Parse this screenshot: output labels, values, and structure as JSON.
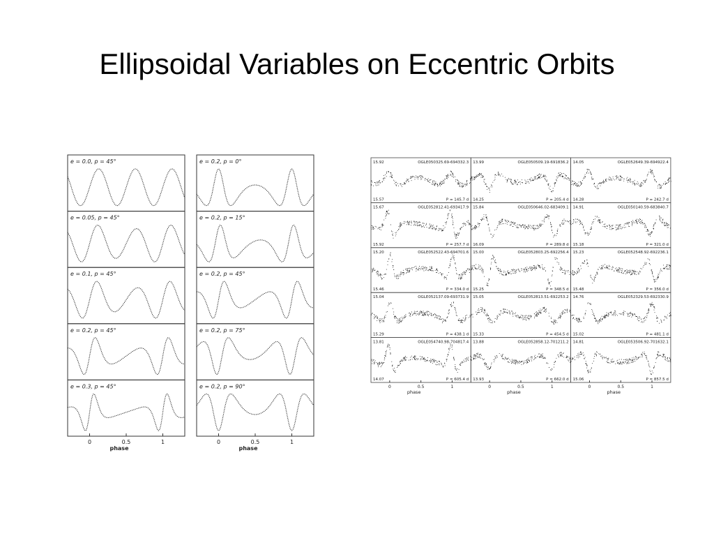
{
  "title": "Ellipsoidal Variables on Eccentric Orbits",
  "left_figure": {
    "panels": [
      "e = 0.0,  p = 45°",
      "e = 0.05,  p = 45°",
      "e = 0.1,  p = 45°",
      "e = 0.2,  p = 45°",
      "e = 0.3,  p = 45°",
      "e = 0.2,  p = 0°",
      "e = 0.2,  p = 15°",
      "e = 0.2,  p = 45°",
      "e = 0.2,  p = 75°",
      "e = 0.2,  p = 90°"
    ],
    "xticks": [
      "0",
      "0.5",
      "1"
    ],
    "xlabel": "phase"
  },
  "right_figure": {
    "panels": [
      {
        "top": "15.92",
        "name": "OGLE050325.69-694332.3",
        "bottom": "15.57",
        "period": "P = 145.7 d"
      },
      {
        "top": "13.99",
        "name": "OGLE050509.19-691836.2",
        "bottom": "14.25",
        "period": "P = 205.4 d"
      },
      {
        "top": "14.05",
        "name": "OGLE052649.39-694922.4",
        "bottom": "14.28",
        "period": "P = 242.7 d"
      },
      {
        "top": "15.67",
        "name": "OGLE052812.41-693417.9",
        "bottom": "15.92",
        "period": "P = 257.7 d"
      },
      {
        "top": "15.84",
        "name": "OGLE050646.02-683409.1",
        "bottom": "16.09",
        "period": "P = 289.8 d"
      },
      {
        "top": "14.91",
        "name": "OGLE050140.59-683840.7",
        "bottom": "15.18",
        "period": "P = 321.0 d"
      },
      {
        "top": "15.20",
        "name": "OGLE052522.43-694701.6",
        "bottom": "15.46",
        "period": "P = 334.0 d"
      },
      {
        "top": "15.00",
        "name": "OGLE052803.25-692256.4",
        "bottom": "15.25",
        "period": "P = 348.5 d"
      },
      {
        "top": "15.23",
        "name": "OGLE052548.92-692236.1",
        "bottom": "15.48",
        "period": "P = 356.0 d"
      },
      {
        "top": "15.04",
        "name": "OGLE052137.09-693731.9",
        "bottom": "15.29",
        "period": "P = 438.1 d"
      },
      {
        "top": "15.05",
        "name": "OGLE052813.51-692253.2",
        "bottom": "15.33",
        "period": "P = 454.5 d"
      },
      {
        "top": "14.76",
        "name": "OGLE052329.53-692330.9",
        "bottom": "15.02",
        "period": "P = 481.1 d"
      },
      {
        "top": "13.81",
        "name": "OGLE054740.98-704817.4",
        "bottom": "14.07",
        "period": "P = 605.4 d"
      },
      {
        "top": "13.88",
        "name": "OGLE052858.12-701211.2",
        "bottom": "13.93",
        "period": "P = 662.0 d"
      },
      {
        "top": "14.81",
        "name": "OGLE053506.92-701632.1",
        "bottom": "15.06",
        "period": "P = 857.5 d"
      }
    ],
    "xticks": [
      "0",
      "0.5",
      "1"
    ],
    "xlabel": "phase"
  }
}
